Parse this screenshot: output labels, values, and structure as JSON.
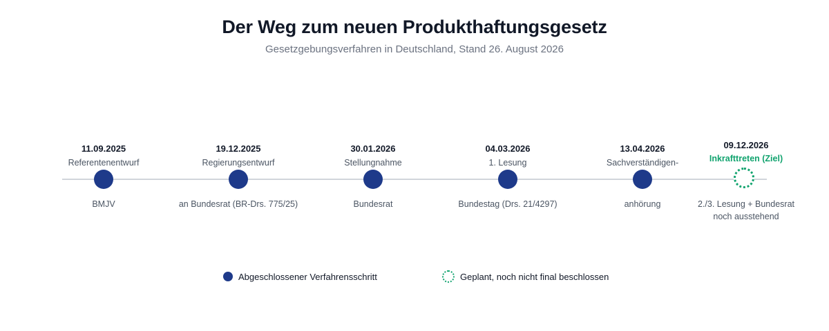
{
  "title": "Der Weg zum neuen Produkthaftungsgesetz",
  "subtitle": "Gesetzgebungsverfahren in Deutschland, Stand 26. August 2026",
  "colors": {
    "completed": "#1e3a8a",
    "planned": "#10a36e",
    "line": "#d1d5db"
  },
  "steps": [
    {
      "date": "11.09.2025",
      "label": "Referentenentwurf",
      "note": "BMJV",
      "status": "completed"
    },
    {
      "date": "19.12.2025",
      "label": "Regierungsentwurf",
      "note": "an Bundesrat (BR-Drs. 775/25)",
      "status": "completed"
    },
    {
      "date": "30.01.2026",
      "label": "Stellungnahme",
      "note": "Bundesrat",
      "status": "completed"
    },
    {
      "date": "04.03.2026",
      "label": "1. Lesung",
      "note": "Bundestag (Drs. 21/4297)",
      "status": "completed"
    },
    {
      "date": "13.04.2026",
      "label": "Sachverständigen-",
      "note": "anhörung",
      "status": "completed"
    },
    {
      "date": "09.12.2026",
      "label": "Inkrafttreten (Ziel)",
      "note": "2./3. Lesung + Bundesrat",
      "note2": "noch ausstehend",
      "status": "planned"
    }
  ],
  "legend": {
    "completed": "Abgeschlossener Verfahrensschritt",
    "planned": "Geplant, noch nicht final beschlossen"
  }
}
